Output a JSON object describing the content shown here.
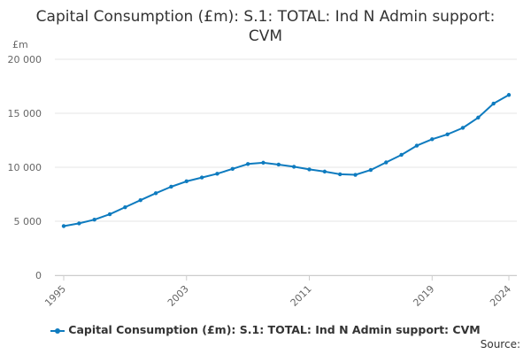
{
  "chart_data": {
    "type": "line",
    "title": "Capital Consumption (£m): S.1: TOTAL: Ind N Admin support: CVM",
    "ylabel": "£m",
    "xlabel": "",
    "ylim": [
      0,
      20000
    ],
    "yticks": [
      0,
      5000,
      10000,
      15000,
      20000
    ],
    "ytick_labels": [
      "0",
      "5 000",
      "10 000",
      "15 000",
      "20 000"
    ],
    "xlim": [
      1995,
      2024
    ],
    "xtick_labels": [
      "1995",
      "2003",
      "2011",
      "2019",
      "2024"
    ],
    "grid": true,
    "legend_position": "bottom",
    "color": "#0e7bbf",
    "series": [
      {
        "name": "Capital Consumption (£m): S.1: TOTAL: Ind N Admin support: CVM",
        "x": [
          1995,
          1996,
          1997,
          1998,
          1999,
          2000,
          2001,
          2002,
          2003,
          2004,
          2005,
          2006,
          2007,
          2008,
          2009,
          2010,
          2011,
          2012,
          2013,
          2014,
          2015,
          2016,
          2017,
          2018,
          2019,
          2020,
          2021,
          2022,
          2023,
          2024
        ],
        "values": [
          4550,
          4800,
          5150,
          5650,
          6300,
          6950,
          7600,
          8200,
          8700,
          9050,
          9400,
          9850,
          10300,
          10420,
          10250,
          10050,
          9800,
          9600,
          9350,
          9300,
          9750,
          10450,
          11150,
          12000,
          12600,
          13050,
          13650,
          14600,
          15900,
          16700
        ]
      }
    ]
  },
  "source_label": "Source:"
}
